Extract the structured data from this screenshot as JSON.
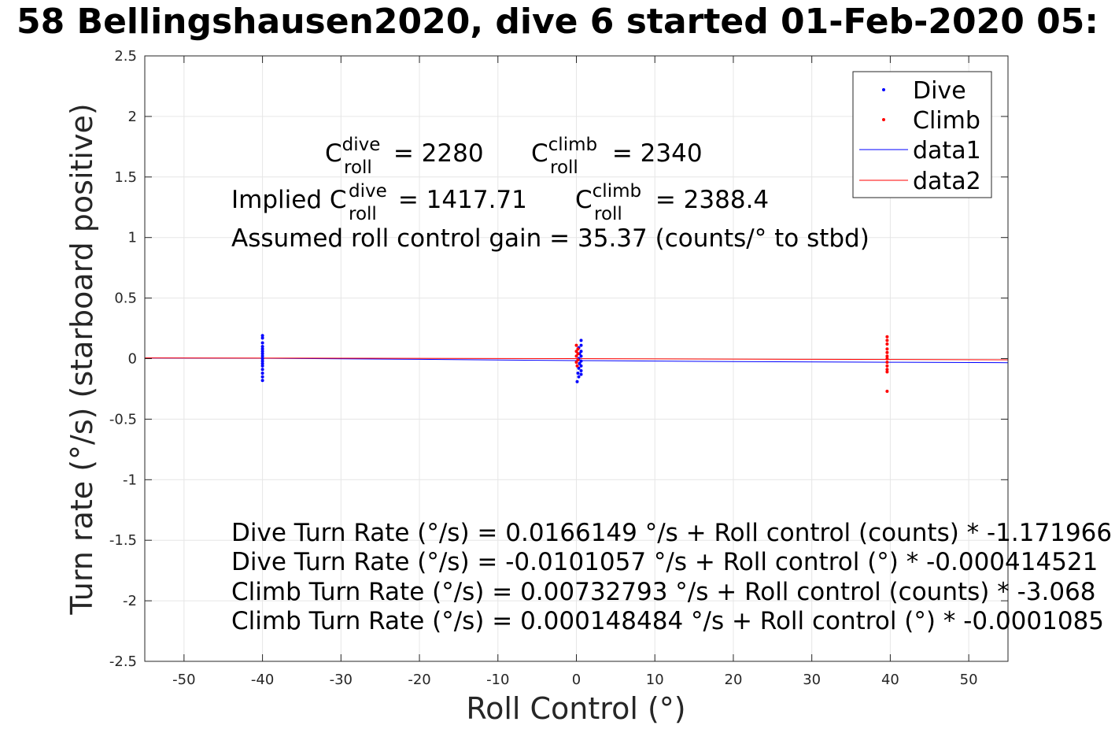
{
  "chart_data": {
    "type": "scatter",
    "title": "58 Bellingshausen2020, dive 6 started 01-Feb-2020 05:",
    "xlabel": "Roll Control (°)",
    "ylabel": "Turn rate (°/s) (starboard positive)",
    "xlim": [
      -55,
      55
    ],
    "ylim": [
      -2.5,
      2.5
    ],
    "grid": true,
    "legend_position": "top-right",
    "x_ticks": [
      -50,
      -40,
      -30,
      -20,
      -10,
      0,
      10,
      20,
      30,
      40,
      50
    ],
    "x_tick_labels": [
      "-50",
      "-40",
      "-30",
      "-20",
      "-10",
      "0",
      "10",
      "20",
      "30",
      "40",
      "50"
    ],
    "y_ticks": [
      2.5,
      2,
      1.5,
      1,
      0.5,
      0,
      -0.5,
      -1,
      -1.5,
      -2,
      -2.5
    ],
    "y_tick_labels": [
      "2.5",
      "2",
      "1.5",
      "1",
      "0.5",
      "0",
      "-0.5",
      "-1",
      "-1.5",
      "-2",
      "-2.5"
    ],
    "legend": [
      {
        "label": "Dive",
        "kind": "marker",
        "color": "#0000ff"
      },
      {
        "label": "Climb",
        "kind": "marker",
        "color": "#ff0000"
      },
      {
        "label": "data1",
        "kind": "line",
        "color": "#0000ff"
      },
      {
        "label": "data2",
        "kind": "line",
        "color": "#ff0000"
      }
    ],
    "series": [
      {
        "name": "Dive",
        "kind": "scatter",
        "color": "#0000ff",
        "points": [
          [
            -40,
            0.19
          ],
          [
            -40,
            0.17
          ],
          [
            -40,
            0.13
          ],
          [
            -40,
            0.1
          ],
          [
            -40,
            0.08
          ],
          [
            -40,
            0.06
          ],
          [
            -40,
            0.04
          ],
          [
            -40,
            0.02
          ],
          [
            -40,
            0.0
          ],
          [
            -40,
            -0.02
          ],
          [
            -40,
            -0.04
          ],
          [
            -40,
            -0.06
          ],
          [
            -40,
            -0.09
          ],
          [
            -40,
            -0.12
          ],
          [
            -40,
            -0.15
          ],
          [
            -40,
            -0.18
          ],
          [
            0.6,
            0.15
          ],
          [
            0.6,
            0.11
          ],
          [
            0.3,
            0.09
          ],
          [
            0.6,
            0.06
          ],
          [
            0.4,
            0.04
          ],
          [
            0.6,
            0.02
          ],
          [
            0.3,
            0.0
          ],
          [
            0.6,
            -0.02
          ],
          [
            0.4,
            -0.04
          ],
          [
            0.6,
            -0.06
          ],
          [
            0.3,
            -0.08
          ],
          [
            0.6,
            -0.1
          ],
          [
            0.2,
            -0.12
          ],
          [
            0.6,
            -0.13
          ],
          [
            0.3,
            -0.15
          ],
          [
            0.1,
            -0.19
          ]
        ]
      },
      {
        "name": "Climb",
        "kind": "scatter",
        "color": "#ff0000",
        "points": [
          [
            0.0,
            0.11
          ],
          [
            0.2,
            0.08
          ],
          [
            0.0,
            0.06
          ],
          [
            0.2,
            0.04
          ],
          [
            0.0,
            0.02
          ],
          [
            0.2,
            -0.01
          ],
          [
            0.0,
            -0.03
          ],
          [
            0.1,
            -0.06
          ],
          [
            39.6,
            0.18
          ],
          [
            39.6,
            0.15
          ],
          [
            39.6,
            0.12
          ],
          [
            39.6,
            0.08
          ],
          [
            39.6,
            0.05
          ],
          [
            39.6,
            0.02
          ],
          [
            39.6,
            0.0
          ],
          [
            39.6,
            -0.03
          ],
          [
            39.6,
            -0.06
          ],
          [
            39.6,
            -0.09
          ],
          [
            39.6,
            -0.11
          ],
          [
            39.6,
            -0.27
          ]
        ]
      },
      {
        "name": "data1",
        "kind": "line",
        "color": "#0000ff",
        "points": [
          [
            -55,
            0.005
          ],
          [
            -40,
            0.003
          ],
          [
            -20,
            -0.006
          ],
          [
            0,
            -0.016
          ],
          [
            20,
            -0.024
          ],
          [
            40,
            -0.03
          ],
          [
            55,
            -0.034
          ]
        ]
      },
      {
        "name": "data2",
        "kind": "line",
        "color": "#ff0000",
        "points": [
          [
            -55,
            0.006
          ],
          [
            -30,
            0.003
          ],
          [
            0,
            0.0
          ],
          [
            30,
            -0.006
          ],
          [
            55,
            -0.01
          ]
        ]
      }
    ],
    "annotations": {
      "line1": {
        "a_base": "C",
        "a_sup": "dive",
        "a_sub": "roll",
        "a_val": " = 2280",
        "b_base": "C",
        "b_sup": "climb",
        "b_sub": "roll",
        "b_val": " = 2340"
      },
      "line2": {
        "prefix": "Implied C",
        "a_sup": "dive",
        "a_sub": "roll",
        "a_val": " = 1417.71",
        "b_base": "C",
        "b_sup": "climb",
        "b_sub": "roll",
        "b_val": " = 2388.4"
      },
      "line3": "Assumed roll control gain = 35.37 (counts/° to stbd)",
      "fits": [
        "Dive Turn Rate (°/s) = 0.0166149 °/s + Roll control (counts) * -1.171966",
        "Dive Turn Rate (°/s) = -0.0101057 °/s + Roll control (°) * -0.000414521",
        "Climb Turn Rate (°/s) = 0.00732793 °/s + Roll control (counts) * -3.068",
        "Climb Turn Rate (°/s) = 0.000148484 °/s + Roll control (°) * -0.0001085"
      ]
    }
  }
}
